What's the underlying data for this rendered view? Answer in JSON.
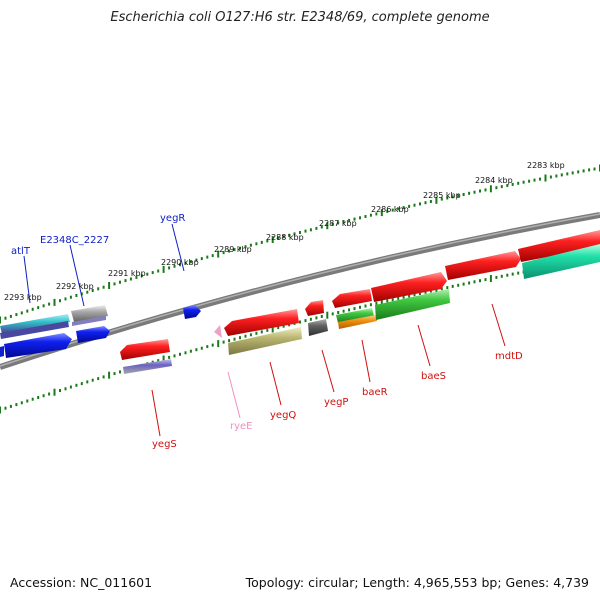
{
  "title": "Escherichia coli O127:H6 str. E2348/69, complete genome",
  "footer": {
    "accession": "Accession: NC_011601",
    "topology": "Topology: circular; Length: 4,965,553 bp; Genes: 4,739"
  },
  "colors": {
    "background": "#ffffff",
    "backbone": "#7a7a7a",
    "tick": "#1a7a1a",
    "red_gene": "#e01010",
    "blue_gene": "#0a14d8",
    "green_gene": "#33bb33",
    "teal_gene": "#18d8a0",
    "cyan_gene": "#30c0c8",
    "grey_gene": "#888888",
    "olive_gene": "#b4b066",
    "orange_gene": "#f09010",
    "pink_gene": "#f0a0c8",
    "purple_gene": "#6a62c0",
    "label_red": "#d01010",
    "label_blue": "#1020c8",
    "label_pink": "#f090c0"
  },
  "scale_labels": [
    "2293 kbp",
    "2292 kbp",
    "2291 kbp",
    "2290 kbp",
    "2289 kbp",
    "2288 kbp",
    "2287 kbp",
    "2286 kbp",
    "2285 kbp",
    "2284 kbp",
    "2283 kbp"
  ],
  "gene_labels": [
    {
      "name": "atlT",
      "color": "#1020c8"
    },
    {
      "name": "E2348C_2227",
      "color": "#1020c8"
    },
    {
      "name": "yegR",
      "color": "#1020c8"
    },
    {
      "name": "yegS",
      "color": "#d01010"
    },
    {
      "name": "ryeE",
      "color": "#f090c0"
    },
    {
      "name": "yegQ",
      "color": "#d01010"
    },
    {
      "name": "yegP",
      "color": "#d01010"
    },
    {
      "name": "baeR",
      "color": "#d01010"
    },
    {
      "name": "baeS",
      "color": "#d01010"
    },
    {
      "name": "mdtD",
      "color": "#d01010"
    }
  ]
}
